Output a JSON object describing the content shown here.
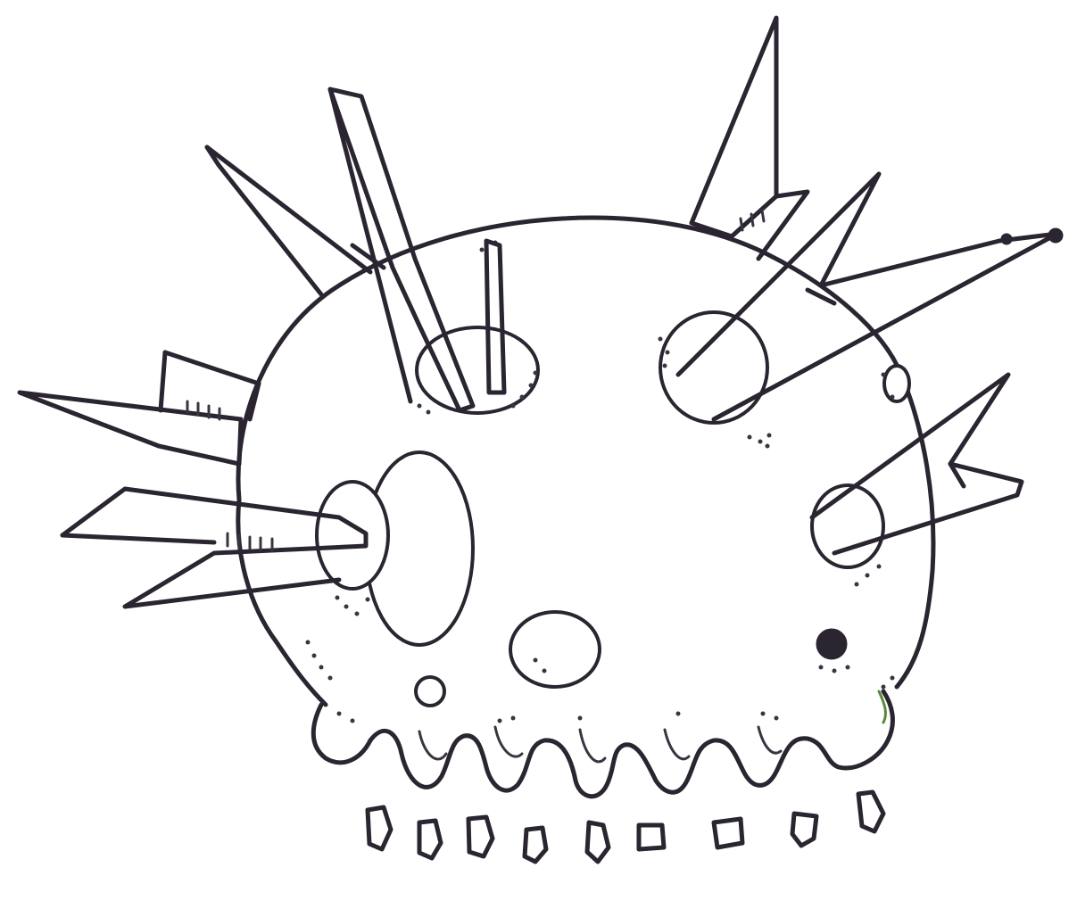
{
  "image": {
    "subject": "",
    "colors": {
      "ink": "#2a2530",
      "paper": "#ffffff",
      "accent": "#5a8a3a"
    }
  }
}
